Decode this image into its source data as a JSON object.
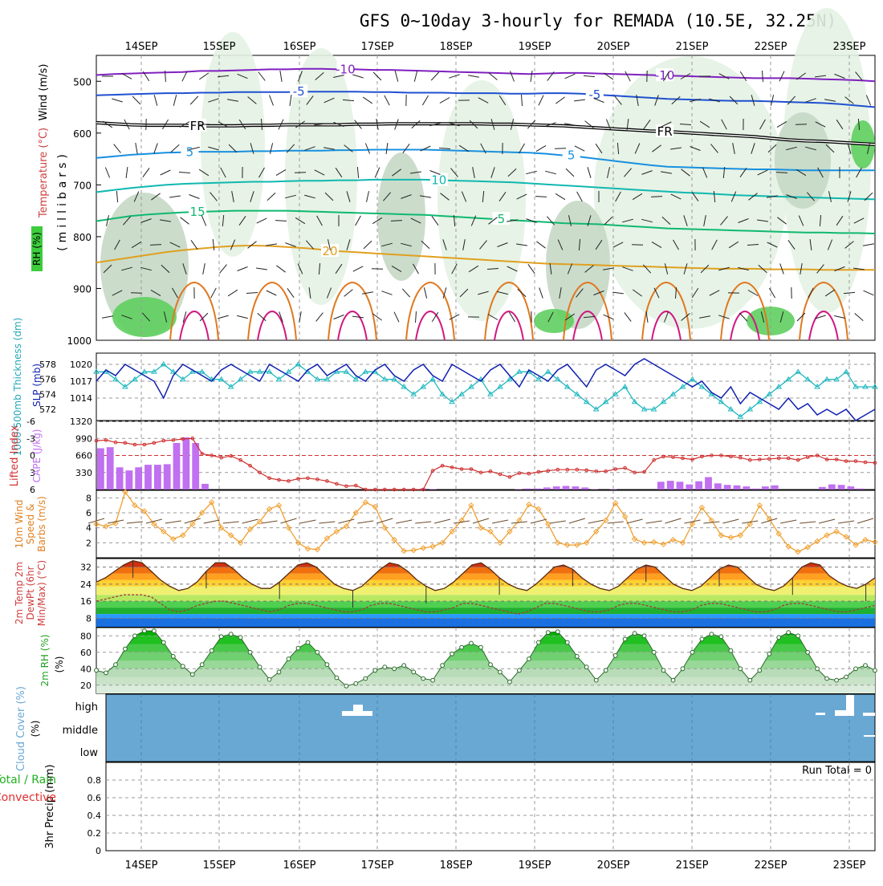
{
  "title": "GFS 0~10day 3-hourly for REMADA (10.5E, 32.25N)",
  "date_labels": [
    "14SEP",
    "15SEP",
    "16SEP",
    "17SEP",
    "18SEP",
    "19SEP",
    "20SEP",
    "21SEP",
    "22SEP",
    "23SEP"
  ],
  "colors": {
    "grid": "#999999",
    "rh_light": "#e3f2e3",
    "rh_mid": "#c5d8c5",
    "rh_green": "#5fcf5f",
    "t_m10": "#8020c0",
    "t_m5": "#2050d0",
    "t_fr": "#000000",
    "t_5": "#1890e0",
    "t_10": "#10b8b0",
    "t_15": "#10b870",
    "t_20": "#e0a020",
    "t_25": "#e07820",
    "t_30": "#d01880",
    "slp": "#1020b0",
    "thick": "#20b8c0",
    "lifted": "#d03030",
    "cape": "#c070f0",
    "wind": "#f0a030",
    "cloud": "#6aa8d4"
  },
  "chart_data": [
    {
      "type": "contour",
      "name": "upper-air",
      "y_axis_label": "(millibars)",
      "left_labels": [
        "Wind (m/s)",
        "Temperature (°C)",
        "RH (%)"
      ],
      "yticks": [
        500,
        600,
        700,
        800,
        900,
        1000
      ],
      "ylim": [
        450,
        1000
      ],
      "contours": [
        {
          "label": "-10",
          "color_key": "t_m10",
          "pressure": [
            488,
            486,
            485,
            484,
            483,
            482,
            480,
            480,
            479,
            478,
            477,
            477,
            476,
            476,
            477,
            477,
            478,
            478,
            479,
            480,
            481,
            482,
            483,
            484,
            485,
            486,
            485,
            484,
            484,
            485,
            486,
            487,
            488,
            489,
            490,
            491,
            492,
            493,
            494,
            494,
            494,
            495,
            496,
            497,
            498,
            500
          ]
        },
        {
          "label": "-5",
          "color_key": "t_m5",
          "pressure": [
            527,
            526,
            525,
            524,
            523,
            523,
            522,
            522,
            521,
            521,
            521,
            521,
            520,
            520,
            520,
            520,
            521,
            521,
            522,
            522,
            522,
            523,
            523,
            523,
            524,
            524,
            523,
            523,
            524,
            526,
            528,
            530,
            532,
            534,
            535,
            536,
            537,
            538,
            538,
            539,
            540,
            541,
            542,
            544,
            547,
            550
          ]
        },
        {
          "label": "FR",
          "color_key": "t_fr",
          "pressure": [
            580,
            582,
            584,
            585,
            585,
            585,
            586,
            586,
            586,
            585,
            585,
            584,
            584,
            584,
            584,
            583,
            583,
            582,
            582,
            582,
            582,
            582,
            582,
            583,
            583,
            584,
            585,
            586,
            588,
            590,
            592,
            594,
            596,
            597,
            599,
            601,
            603,
            605,
            607,
            610,
            613,
            615,
            616,
            618,
            620,
            622
          ]
        },
        {
          "label": "5",
          "color_key": "t_5",
          "pressure": [
            648,
            645,
            642,
            640,
            638,
            637,
            636,
            636,
            636,
            635,
            635,
            634,
            634,
            634,
            633,
            633,
            632,
            632,
            632,
            632,
            633,
            634,
            635,
            636,
            637,
            638,
            640,
            643,
            646,
            650,
            654,
            658,
            662,
            665,
            666,
            667,
            668,
            669,
            670,
            670,
            671,
            672,
            672,
            672,
            672,
            672
          ]
        },
        {
          "label": "10",
          "color_key": "t_10",
          "pressure": [
            714,
            710,
            706,
            703,
            700,
            698,
            697,
            696,
            695,
            694,
            694,
            693,
            692,
            692,
            691,
            691,
            690,
            690,
            690,
            690,
            691,
            692,
            693,
            694,
            695,
            697,
            699,
            701,
            703,
            705,
            707,
            709,
            711,
            713,
            715,
            716,
            718,
            720,
            721,
            722,
            723,
            724,
            725,
            726,
            727,
            728
          ]
        },
        {
          "label": "15",
          "color_key": "t_15",
          "pressure": [
            770,
            765,
            760,
            757,
            755,
            753,
            752,
            751,
            750,
            750,
            750,
            750,
            751,
            752,
            753,
            754,
            755,
            756,
            757,
            758,
            760,
            762,
            764,
            766,
            768,
            770,
            772,
            774,
            775,
            776,
            778,
            780,
            782,
            784,
            785,
            786,
            787,
            788,
            789,
            790,
            791,
            792,
            792,
            793,
            793,
            794
          ]
        },
        {
          "label": "20",
          "color_key": "t_20",
          "pressure": [
            850,
            845,
            840,
            835,
            830,
            826,
            823,
            820,
            818,
            817,
            818,
            820,
            822,
            825,
            828,
            830,
            832,
            834,
            836,
            838,
            840,
            842,
            844,
            846,
            848,
            850,
            852,
            853,
            854,
            855,
            856,
            857,
            858,
            859,
            860,
            861,
            862,
            862,
            862,
            863,
            863,
            863,
            864,
            864,
            864,
            864
          ]
        }
      ],
      "temp_labels": [
        {
          "text": "-10",
          "t": 0.32,
          "color_key": "t_m10"
        },
        {
          "text": "-10",
          "t": 0.73,
          "color_key": "t_m10"
        },
        {
          "text": "-5",
          "t": 0.26,
          "color_key": "t_m5"
        },
        {
          "text": "-5",
          "t": 0.64,
          "color_key": "t_m5"
        },
        {
          "text": "FR",
          "t": 0.13,
          "color_key": "t_fr"
        },
        {
          "text": "FR",
          "t": 0.73,
          "color_key": "t_fr"
        },
        {
          "text": "5",
          "t": 0.12,
          "color_key": "t_5"
        },
        {
          "text": "5",
          "t": 0.61,
          "color_key": "t_5"
        },
        {
          "text": "10",
          "t": 0.44,
          "color_key": "t_10"
        },
        {
          "text": "15",
          "t": 0.13,
          "color_key": "t_15"
        },
        {
          "text": "5",
          "t": 0.52,
          "color_key": "t_15"
        },
        {
          "text": "20",
          "t": 0.3,
          "color_key": "t_20"
        }
      ]
    },
    {
      "type": "line",
      "name": "slp-thickness",
      "ylabel_left": "1000-500mb Thickness (dm)",
      "ylabel_right": "SLP (mb)",
      "thickness_ticks": [
        572,
        574,
        576,
        578
      ],
      "slp_ticks": [
        1014,
        1017,
        1020
      ],
      "thickness_ylim": [
        570.5,
        579.5
      ],
      "slp_ylim": [
        1010,
        1022
      ],
      "slp_series": [
        1017,
        1019,
        1018,
        1020,
        1019,
        1018,
        1017,
        1014,
        1018,
        1020,
        1019,
        1018,
        1017,
        1019,
        1020,
        1019,
        1018,
        1017,
        1020,
        1019,
        1018,
        1017,
        1019,
        1020,
        1018,
        1019,
        1020,
        1018,
        1017,
        1019,
        1020,
        1018,
        1017,
        1019,
        1020,
        1018,
        1017,
        1020,
        1019,
        1018,
        1017,
        1019,
        1020,
        1018,
        1016,
        1019,
        1018,
        1017,
        1019,
        1020,
        1018,
        1016,
        1019,
        1020,
        1019,
        1018,
        1020,
        1021,
        1020,
        1019,
        1018,
        1017,
        1016,
        1017,
        1015,
        1014,
        1016,
        1013,
        1015,
        1014,
        1013,
        1012,
        1014,
        1012,
        1013,
        1011,
        1012,
        1011,
        1012,
        1010,
        1011,
        1012
      ],
      "thickness_series": [
        577,
        577,
        576,
        575,
        576,
        577,
        577,
        578,
        577,
        576,
        577,
        577,
        576,
        576,
        575,
        576,
        577,
        577,
        577,
        576,
        577,
        578,
        577,
        576,
        576,
        577,
        577,
        576,
        577,
        577,
        576,
        576,
        575,
        574,
        575,
        576,
        574,
        573,
        574,
        575,
        576,
        574,
        575,
        576,
        577,
        577,
        576,
        577,
        576,
        575,
        574,
        573,
        572,
        573,
        574,
        575,
        573,
        572,
        572,
        573,
        574,
        575,
        576,
        575,
        574,
        573,
        572,
        571,
        572,
        573,
        574,
        575,
        576,
        577,
        576,
        575,
        576,
        576,
        577,
        575,
        575,
        575
      ]
    },
    {
      "type": "bar+line",
      "name": "cape-lifted",
      "ylabel_left": "Lifted Index",
      "ylabel_right": "CAPE (J/kg)",
      "lifted_ticks": [
        -6,
        -3,
        0,
        3,
        6
      ],
      "cape_ticks": [
        330,
        660,
        990,
        1320
      ],
      "lifted_ylim": [
        -6,
        6
      ],
      "cape_ylim": [
        0,
        1320
      ],
      "cape_values": [
        800,
        820,
        430,
        370,
        430,
        480,
        480,
        490,
        900,
        1010,
        900,
        110,
        0,
        0,
        0,
        0,
        0,
        0,
        0,
        0,
        0,
        0,
        0,
        0,
        0,
        0,
        0,
        0,
        0,
        0,
        0,
        0,
        0,
        10,
        20,
        10,
        0,
        0,
        0,
        0,
        0,
        0,
        0,
        0,
        10,
        20,
        20,
        40,
        60,
        70,
        60,
        40,
        10,
        0,
        10,
        0,
        0,
        0,
        0,
        150,
        170,
        150,
        100,
        160,
        240,
        120,
        90,
        80,
        60,
        20,
        60,
        80,
        0,
        0,
        0,
        0,
        50,
        100,
        90,
        60,
        20,
        0
      ],
      "lifted_values": [
        -2.6,
        -2.7,
        -2.3,
        -2.2,
        -1.9,
        -1.9,
        -2.2,
        -2.6,
        -2.7,
        -2.9,
        -3.0,
        -0.3,
        0.0,
        0.4,
        0.1,
        0.8,
        1.8,
        3.0,
        4.0,
        4.3,
        4.5,
        4.1,
        4.0,
        4.2,
        4.5,
        5.0,
        5.4,
        5.3,
        6.0,
        6.0,
        6.0,
        6.0,
        6.0,
        6.0,
        6.0,
        2.7,
        1.8,
        2.1,
        2.4,
        2.4,
        3.0,
        2.8,
        3.3,
        3.8,
        3.1,
        3.2,
        2.9,
        2.7,
        2.5,
        2.5,
        2.5,
        2.6,
        2.8,
        2.8,
        2.4,
        2.2,
        3.0,
        2.9,
        0.8,
        0.2,
        0.3,
        0.5,
        0.7,
        0.2,
        0.0,
        0.0,
        0.2,
        0.4,
        0.8,
        0.7,
        0.6,
        0.5,
        0.5,
        0.8,
        0.3,
        0.0,
        0.7,
        0.7,
        1.0,
        1.0,
        1.2,
        1.3
      ]
    },
    {
      "type": "line",
      "name": "wind10m",
      "ylabel": "10m Wind Speed & Barbs (m/s)",
      "yticks": [
        2,
        4,
        6,
        8
      ],
      "ylim": [
        0,
        9
      ],
      "series": [
        4.5,
        4.2,
        4.6,
        8.8,
        7.0,
        6.2,
        4.5,
        3.5,
        2.5,
        3.0,
        4.5,
        6.0,
        7.4,
        4.0,
        3.0,
        2.0,
        3.8,
        4.8,
        6.5,
        7.0,
        4.0,
        2.0,
        1.2,
        1.1,
        2.6,
        3.5,
        4.2,
        6.0,
        7.4,
        6.8,
        4.0,
        2.4,
        0.9,
        1.0,
        1.3,
        1.5,
        2.0,
        3.5,
        5.0,
        7.0,
        4.0,
        3.5,
        2.0,
        3.5,
        5.0,
        7.1,
        6.5,
        4.5,
        2.0,
        1.7,
        1.7,
        2.0,
        3.5,
        5.0,
        7.3,
        5.5,
        2.5,
        2.0,
        2.1,
        1.8,
        2.4,
        2.0,
        4.5,
        6.7,
        5.0,
        3.0,
        2.7,
        3.0,
        4.5,
        7.0,
        5.2,
        3.2,
        1.5,
        0.8,
        1.4,
        2.2,
        3.0,
        3.5,
        2.8,
        1.7,
        2.4,
        2.1
      ]
    },
    {
      "type": "area",
      "name": "temp2m",
      "ylabel": "2m Temp 2m DewPt (6hr Min/Max) (°C)",
      "yticks": [
        8,
        16,
        24,
        32
      ],
      "ylim": [
        4,
        36
      ],
      "temp": [
        25,
        27,
        30,
        33,
        35,
        34,
        30,
        26,
        23,
        21,
        22,
        25,
        30,
        34,
        34,
        31,
        27,
        24,
        22,
        22,
        25,
        29,
        33,
        34,
        32,
        28,
        24,
        22,
        21,
        23,
        27,
        31,
        34,
        33,
        30,
        26,
        23,
        21,
        22,
        25,
        29,
        33,
        34,
        31,
        27,
        24,
        22,
        21,
        24,
        28,
        32,
        33,
        31,
        27,
        24,
        22,
        21,
        23,
        27,
        31,
        33,
        32,
        28,
        24,
        22,
        21,
        23,
        27,
        31,
        33,
        32,
        28,
        24,
        22,
        21,
        23,
        27,
        32,
        34,
        33,
        28,
        25,
        23,
        22,
        24,
        27
      ],
      "dewpt": [
        16,
        17,
        18,
        19,
        19,
        19,
        18,
        15,
        12,
        11,
        12,
        14,
        15,
        16,
        16,
        15,
        14,
        13,
        12,
        11,
        12,
        14,
        15,
        15,
        14,
        13,
        12,
        11,
        11,
        12,
        14,
        15,
        15,
        14,
        13,
        12,
        11,
        11,
        12,
        13,
        15,
        15,
        14,
        13,
        12,
        11,
        10,
        11,
        13,
        15,
        15,
        14,
        13,
        12,
        11,
        11,
        12,
        14,
        15,
        15,
        14,
        13,
        12,
        11,
        11,
        12,
        14,
        15,
        15,
        14,
        13,
        12,
        11,
        11,
        12,
        14,
        15,
        15,
        14,
        13,
        12,
        11,
        11,
        12,
        13,
        14
      ]
    },
    {
      "type": "area",
      "name": "rh2m",
      "ylabel": "2m RH (%)",
      "yticks": [
        20,
        40,
        60,
        80
      ],
      "ylim": [
        10,
        90
      ],
      "series": [
        38,
        35,
        45,
        64,
        80,
        86,
        86,
        72,
        55,
        43,
        33,
        45,
        62,
        79,
        82,
        78,
        60,
        42,
        27,
        36,
        52,
        65,
        72,
        60,
        45,
        29,
        19,
        22,
        28,
        38,
        42,
        40,
        44,
        36,
        28,
        26,
        44,
        58,
        66,
        71,
        66,
        45,
        36,
        24,
        38,
        52,
        72,
        84,
        85,
        72,
        55,
        42,
        26,
        38,
        56,
        76,
        83,
        80,
        60,
        38,
        26,
        40,
        60,
        76,
        82,
        79,
        62,
        40,
        26,
        38,
        58,
        78,
        84,
        80,
        60,
        40,
        28,
        26,
        30,
        40,
        44,
        38
      ]
    },
    {
      "type": "area",
      "name": "cloud",
      "ylabel": "Cloud Cover (%)",
      "yticks_labels": [
        "high",
        "middle",
        "low"
      ]
    },
    {
      "type": "bar",
      "name": "precip",
      "ylabel": "3hr Precip (mm)",
      "left_labels": [
        "Total / Rain",
        "Convective"
      ],
      "yticks": [
        0,
        0.2,
        0.4,
        0.6,
        0.8
      ],
      "ylim": [
        0,
        1
      ],
      "values": [],
      "annotation": "Run Total = 0"
    }
  ]
}
